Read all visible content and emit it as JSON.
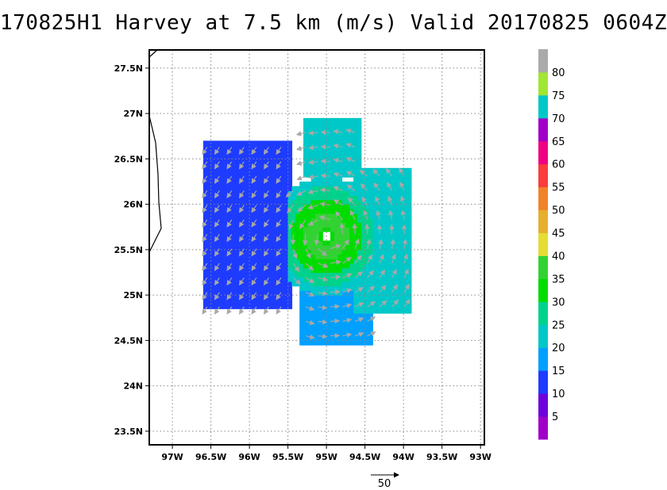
{
  "title": "170825H1 Harvey at 7.5 km (m/s) Valid 20170825 0604Z",
  "chart_data": {
    "type": "heatmap",
    "title": "170825H1 Harvey at 7.5 km (m/s) Valid 20170825 0604Z",
    "xlabel": "",
    "ylabel": "",
    "x_ticks": [
      "97W",
      "96.5W",
      "96W",
      "95.5W",
      "95W",
      "94.5W",
      "94W",
      "93.5W",
      "93W"
    ],
    "y_ticks": [
      "23.5N",
      "24N",
      "24.5N",
      "25N",
      "25.5N",
      "26N",
      "26.5N",
      "27N",
      "27.5N"
    ],
    "xlim": [
      -97.3,
      -92.95
    ],
    "ylim": [
      23.35,
      27.7
    ],
    "grid": true,
    "colorbar": {
      "labels": [
        "5",
        "10",
        "15",
        "20",
        "25",
        "30",
        "35",
        "40",
        "45",
        "50",
        "55",
        "60",
        "65",
        "70",
        "75",
        "80"
      ],
      "colors": [
        "#a000c8",
        "#6e00dc",
        "#1e3cff",
        "#00a0ff",
        "#00c8c8",
        "#00d28c",
        "#00dc00",
        "#32d232",
        "#e6dc32",
        "#e6af2d",
        "#f08228",
        "#fa3c3c",
        "#f00082",
        "#a000c8",
        "#00c8c8",
        "#a0e632",
        "#aaaaaa"
      ]
    },
    "wind_field": {
      "center": {
        "lon": -95.0,
        "lat": 25.65
      },
      "max_speed": 38,
      "regions": [
        {
          "name": "western-band",
          "lon": [
            -96.6,
            -95.45
          ],
          "lat": [
            24.85,
            26.7
          ],
          "speed": 12
        },
        {
          "name": "northern-band",
          "lon": [
            -95.3,
            -94.55
          ],
          "lat": [
            26.3,
            26.95
          ],
          "speed": 20
        },
        {
          "name": "eastern-band",
          "lon": [
            -94.65,
            -93.9
          ],
          "lat": [
            24.8,
            26.4
          ],
          "speed": 22
        },
        {
          "name": "southern-band",
          "lon": [
            -95.35,
            -94.4
          ],
          "lat": [
            24.45,
            25.25
          ],
          "speed": 18
        }
      ]
    },
    "reference_vector": {
      "label": "50",
      "speed": 50
    }
  }
}
